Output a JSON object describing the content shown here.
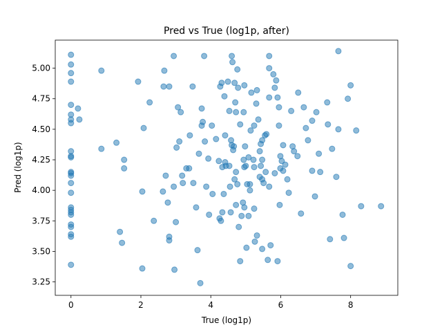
{
  "chart_data": {
    "type": "scatter",
    "title": "Pred vs True (log1p, after)",
    "xlabel": "True (log1p)",
    "ylabel": "Pred (log1p)",
    "color": "#1f77b4",
    "xlim": [
      -0.45,
      9.35
    ],
    "xticks": [
      0,
      2,
      4,
      6,
      8
    ],
    "ylim": [
      3.14,
      5.23
    ],
    "yticks": [
      3.25,
      {
        "value": 3.5,
        "label": "3.50"
      },
      3.75,
      {
        "value": 4,
        "label": "4.00"
      },
      4.25,
      {
        "value": 4.5,
        "label": "4.50"
      },
      4.75,
      {
        "value": 5,
        "label": "5.00"
      }
    ],
    "x": [
      0,
      0,
      0,
      0,
      0,
      0,
      0,
      0,
      0,
      0,
      0,
      0,
      0,
      0,
      0,
      0,
      0,
      0,
      0,
      0,
      0,
      0,
      0,
      0,
      0,
      0.2,
      0.24,
      0.87,
      0.87,
      1.3,
      1.4,
      1.46,
      1.52,
      1.52,
      1.92,
      2.04,
      2.04,
      2.08,
      2.25,
      2.37,
      2.63,
      2.65,
      2.67,
      2.71,
      2.77,
      2.81,
      2.81,
      2.81,
      2.94,
      2.94,
      2.96,
      3.0,
      3.02,
      3.06,
      3.1,
      3.14,
      3.18,
      3.2,
      3.3,
      3.38,
      3.4,
      3.48,
      3.5,
      3.58,
      3.62,
      3.7,
      3.66,
      3.74,
      3.74,
      3.77,
      3.81,
      3.83,
      3.87,
      3.93,
      3.95,
      4.03,
      4.05,
      4.15,
      4.23,
      4.25,
      4.27,
      4.29,
      4.31,
      4.33,
      4.33,
      4.37,
      4.39,
      4.41,
      4.41,
      4.43,
      4.49,
      4.53,
      4.53,
      4.57,
      4.66,
      4.55,
      4.6,
      4.62,
      4.58,
      4.6,
      4.64,
      4.68,
      4.7,
      4.72,
      4.78,
      4.68,
      4.72,
      4.84,
      4.8,
      4.84,
      4.72,
      4.76,
      4.88,
      4.94,
      4.76,
      4.94,
      4.96,
      4.98,
      4.92,
      4.96,
      4.96,
      5.0,
      5.04,
      5.12,
      5.08,
      5.12,
      5.14,
      5.16,
      5.08,
      5.02,
      5.22,
      5.24,
      5.24,
      5.26,
      5.3,
      5.32,
      5.32,
      5.36,
      5.4,
      5.47,
      5.47,
      5.43,
      5.43,
      5.47,
      5.4,
      5.51,
      5.55,
      5.59,
      5.57,
      5.67,
      5.67,
      5.47,
      5.24,
      5.67,
      5.67,
      5.79,
      5.87,
      5.83,
      5.91,
      5.95,
      5.95,
      5.99,
      6.03,
      6.07,
      5.63,
      5.71,
      6.07,
      5.99,
      5.97,
      5.91,
      5.83,
      6.13,
      6.19,
      6.23,
      6.3,
      6.34,
      6.38,
      6.48,
      6.5,
      6.58,
      6.66,
      6.72,
      6.78,
      6.9,
      6.9,
      6.98,
      7.02,
      7.09,
      7.13,
      7.33,
      7.35,
      7.47,
      7.59,
      7.65,
      7.77,
      7.81,
      7.92,
      8.0,
      8.0,
      8.16,
      8.3,
      8.87,
      7.65,
      7.41
    ],
    "values": [
      5.11,
      5.03,
      4.96,
      4.89,
      4.7,
      4.62,
      4.58,
      4.55,
      4.32,
      4.28,
      4.27,
      4.15,
      4.14,
      4.12,
      4.06,
      3.98,
      3.86,
      3.84,
      3.72,
      3.7,
      3.64,
      3.62,
      3.39,
      3.82,
      3.8,
      4.67,
      4.58,
      4.98,
      4.34,
      4.39,
      3.66,
      3.57,
      4.25,
      4.18,
      4.89,
      3.99,
      3.36,
      4.51,
      4.72,
      3.75,
      3.99,
      4.85,
      4.98,
      4.12,
      3.9,
      4.85,
      3.62,
      3.59,
      5.1,
      4.03,
      3.35,
      3.74,
      4.35,
      4.68,
      4.4,
      4.64,
      4.12,
      4.06,
      4.18,
      4.18,
      4.45,
      4.85,
      4.06,
      3.86,
      3.51,
      3.24,
      4.3,
      4.67,
      4.53,
      4.56,
      5.1,
      4.4,
      4.03,
      4.26,
      3.8,
      4.53,
      3.97,
      4.42,
      4.24,
      3.77,
      4.85,
      3.75,
      4.88,
      4.19,
      3.82,
      3.97,
      4.77,
      4.45,
      4.23,
      4.2,
      4.89,
      4.2,
      4.65,
      3.82,
      4.36,
      4.03,
      5.1,
      5.05,
      4.41,
      4.37,
      4.33,
      4.09,
      4.72,
      4.15,
      4.84,
      4.88,
      3.88,
      4.54,
      3.7,
      3.42,
      4.64,
      4.05,
      3.79,
      4.64,
      4.99,
      4.25,
      4.86,
      4.36,
      3.9,
      4.19,
      3.86,
      4.2,
      4.05,
      4.0,
      4.27,
      4.05,
      4.49,
      4.8,
      3.79,
      3.53,
      4.25,
      4.19,
      4.53,
      3.58,
      4.71,
      4.82,
      3.63,
      4.58,
      4.11,
      4.41,
      4.25,
      4.2,
      4.38,
      4.09,
      4.32,
      4.06,
      4.45,
      4.46,
      4.15,
      4.76,
      4.03,
      3.52,
      3.85,
      5.1,
      5.0,
      4.95,
      4.9,
      4.84,
      4.76,
      4.68,
      4.53,
      4.18,
      4.24,
      4.16,
      3.43,
      3.55,
      4.37,
      4.28,
      3.88,
      3.42,
      4.14,
      4.21,
      4.09,
      3.98,
      4.65,
      4.36,
      4.32,
      4.28,
      4.8,
      3.81,
      4.68,
      4.51,
      4.41,
      4.57,
      4.16,
      3.95,
      4.64,
      4.3,
      4.15,
      4.72,
      4.54,
      4.34,
      4.11,
      4.5,
      3.8,
      3.61,
      4.75,
      4.86,
      3.38,
      4.49,
      3.87,
      3.87,
      5.14,
      3.6
    ]
  }
}
